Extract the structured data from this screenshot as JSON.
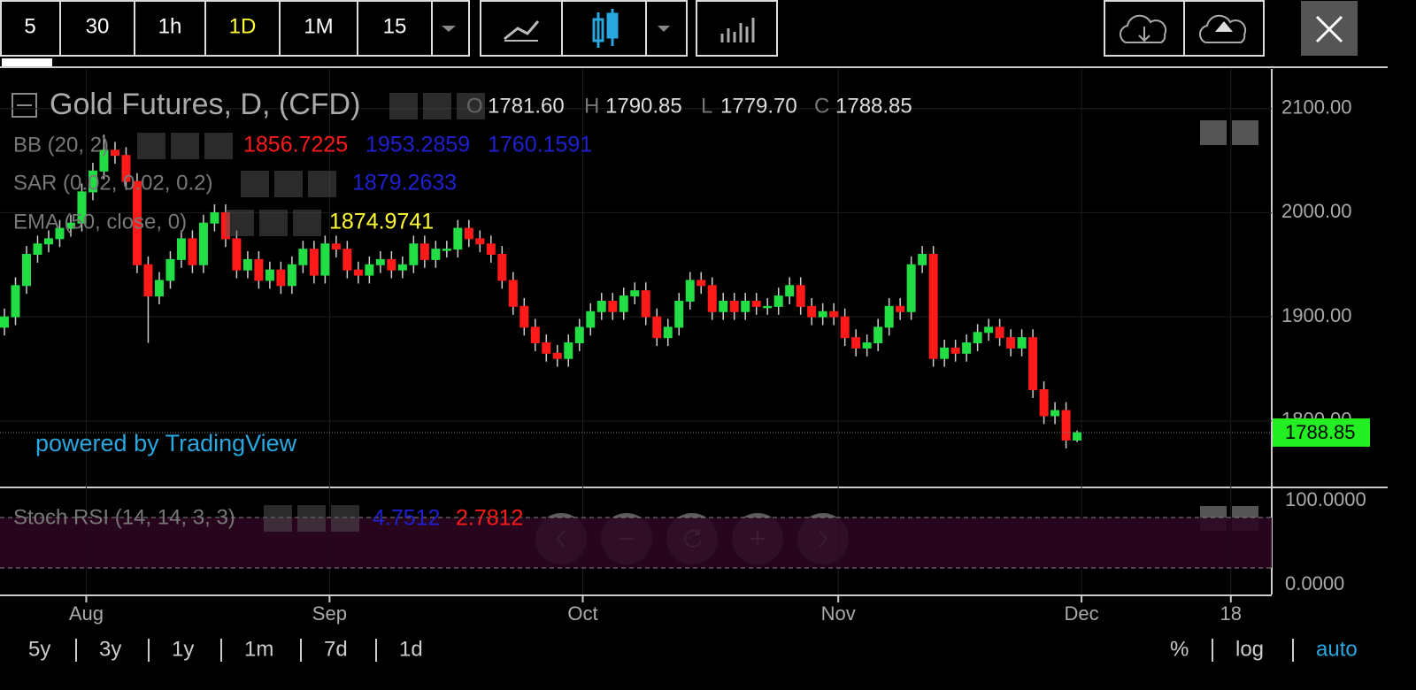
{
  "toolbar": {
    "intervals": [
      "5",
      "30",
      "1h",
      "1D",
      "1M",
      "15"
    ],
    "active_interval": "1D"
  },
  "legend": {
    "title": "Gold Futures, D, (CFD)",
    "ohlc": [
      {
        "key": "O",
        "value": "1781.60"
      },
      {
        "key": "H",
        "value": "1790.85"
      },
      {
        "key": "L",
        "value": "1779.70"
      },
      {
        "key": "C",
        "value": "1788.85"
      }
    ],
    "indicators": [
      {
        "name": "BB (20, 2)",
        "values": [
          "1856.7225",
          "1953.2859",
          "1760.1591"
        ],
        "colors": [
          "#ff1a1a",
          "#2020d0",
          "#2020d0"
        ]
      },
      {
        "name": "SAR (0.02, 0.02, 0.2)",
        "values": [
          "1879.2633"
        ],
        "colors": [
          "#2020d0"
        ]
      },
      {
        "name": "EMA (50, close, 0)",
        "values": [
          "1874.9741"
        ],
        "colors": [
          "#ffff33"
        ]
      }
    ]
  },
  "watermark": "powered by TradingView",
  "chart_data": {
    "type": "candlestick",
    "up_color": "#22dd44",
    "down_color": "#ff1a1a",
    "open": [
      1890,
      1900,
      1930,
      1960,
      1970,
      1975,
      1985,
      1990,
      2020,
      2040,
      2060,
      2055,
      2030,
      1950,
      1920,
      1935,
      1955,
      1975,
      1950,
      1990,
      2000,
      1975,
      1945,
      1955,
      1935,
      1945,
      1930,
      1950,
      1965,
      1940,
      1970,
      1965,
      1945,
      1940,
      1950,
      1955,
      1945,
      1950,
      1970,
      1955,
      1965,
      1965,
      1985,
      1975,
      1970,
      1960,
      1935,
      1910,
      1890,
      1875,
      1865,
      1860,
      1875,
      1890,
      1905,
      1915,
      1905,
      1920,
      1925,
      1900,
      1880,
      1890,
      1915,
      1935,
      1930,
      1905,
      1915,
      1905,
      1915,
      1910,
      1910,
      1920,
      1930,
      1910,
      1900,
      1905,
      1900,
      1880,
      1870,
      1875,
      1890,
      1910,
      1905,
      1950,
      1960,
      1860,
      1870,
      1865,
      1875,
      1885,
      1890,
      1880,
      1870,
      1880,
      1830,
      1805,
      1810,
      1781.6
    ],
    "high": [
      1908,
      1938,
      1968,
      1978,
      1983,
      1993,
      1998,
      2028,
      2048,
      2075,
      2068,
      2063,
      2038,
      1958,
      1943,
      1963,
      1983,
      1983,
      1998,
      2008,
      2008,
      1983,
      1963,
      1963,
      1953,
      1953,
      1958,
      1973,
      1973,
      1978,
      1978,
      1973,
      1953,
      1958,
      1963,
      1963,
      1958,
      1978,
      1978,
      1973,
      1973,
      1993,
      1993,
      1983,
      1978,
      1968,
      1943,
      1918,
      1898,
      1883,
      1873,
      1883,
      1898,
      1913,
      1923,
      1923,
      1928,
      1933,
      1933,
      1908,
      1898,
      1923,
      1943,
      1943,
      1938,
      1923,
      1923,
      1923,
      1923,
      1918,
      1928,
      1938,
      1938,
      1918,
      1913,
      1913,
      1908,
      1888,
      1883,
      1898,
      1918,
      1918,
      1958,
      1968,
      1968,
      1878,
      1878,
      1883,
      1893,
      1898,
      1898,
      1888,
      1888,
      1888,
      1838,
      1818,
      1818,
      1790.85
    ],
    "low": [
      1882,
      1892,
      1922,
      1952,
      1962,
      1967,
      1977,
      1982,
      2012,
      2032,
      2047,
      2022,
      1942,
      1875,
      1912,
      1927,
      1947,
      1942,
      1942,
      1982,
      1967,
      1937,
      1937,
      1927,
      1927,
      1922,
      1922,
      1942,
      1932,
      1932,
      1957,
      1937,
      1932,
      1932,
      1942,
      1937,
      1937,
      1942,
      1947,
      1947,
      1957,
      1957,
      1967,
      1962,
      1952,
      1927,
      1902,
      1882,
      1867,
      1857,
      1852,
      1852,
      1867,
      1882,
      1897,
      1897,
      1897,
      1912,
      1892,
      1872,
      1872,
      1882,
      1907,
      1922,
      1897,
      1897,
      1897,
      1897,
      1902,
      1902,
      1902,
      1912,
      1902,
      1892,
      1892,
      1892,
      1872,
      1862,
      1862,
      1867,
      1882,
      1897,
      1897,
      1942,
      1852,
      1852,
      1857,
      1857,
      1867,
      1877,
      1872,
      1862,
      1862,
      1822,
      1797,
      1797,
      1773.6,
      1779.7
    ],
    "close": [
      1900,
      1930,
      1960,
      1970,
      1975,
      1985,
      1990,
      2020,
      2040,
      2060,
      2055,
      2030,
      1950,
      1920,
      1935,
      1955,
      1975,
      1950,
      1990,
      2000,
      1975,
      1945,
      1955,
      1935,
      1945,
      1930,
      1950,
      1965,
      1940,
      1970,
      1965,
      1945,
      1940,
      1950,
      1955,
      1945,
      1950,
      1970,
      1955,
      1965,
      1965,
      1985,
      1975,
      1970,
      1960,
      1935,
      1910,
      1890,
      1875,
      1865,
      1860,
      1875,
      1890,
      1905,
      1915,
      1905,
      1920,
      1925,
      1900,
      1880,
      1890,
      1915,
      1935,
      1930,
      1905,
      1915,
      1905,
      1915,
      1910,
      1910,
      1920,
      1930,
      1910,
      1900,
      1905,
      1900,
      1880,
      1870,
      1875,
      1890,
      1910,
      1905,
      1950,
      1960,
      1860,
      1870,
      1865,
      1875,
      1885,
      1890,
      1880,
      1870,
      1880,
      1830,
      1805,
      1810,
      1781.6,
      1788.85
    ],
    "ylim": [
      1737,
      2138
    ],
    "yticks": [
      {
        "value": 2100,
        "label": "2100.00"
      },
      {
        "value": 2000,
        "label": "2000.00"
      },
      {
        "value": 1900,
        "label": "1900.00"
      },
      {
        "value": 1800,
        "label": "1800.00"
      }
    ],
    "xlim": [
      -0.4,
      114.6
    ],
    "xticks": [
      {
        "value": 7.4,
        "label": "Aug"
      },
      {
        "value": 29.4,
        "label": "Sep"
      },
      {
        "value": 52.3,
        "label": "Oct"
      },
      {
        "value": 75.4,
        "label": "Nov"
      },
      {
        "value": 97.4,
        "label": "Dec"
      },
      {
        "value": 110.9,
        "label": "18"
      }
    ],
    "last_price": {
      "value": 1788.85,
      "label": "1788.85"
    },
    "grid": true
  },
  "stoch_rsi": {
    "name": "Stoch RSI (14, 14, 3, 3)",
    "values": [
      "4.7512",
      "2.7812"
    ],
    "colors": [
      "#2020d0",
      "#ff1a1a"
    ],
    "ylim": [
      0,
      100
    ],
    "yticks": [
      {
        "value": 100,
        "label": "100.0000"
      },
      {
        "value": 0,
        "label": "0.0000"
      }
    ],
    "levels": [
      20,
      80
    ]
  },
  "ranges": [
    "5y",
    "3y",
    "1y",
    "1m",
    "7d",
    "1d"
  ],
  "scale_options": [
    "%",
    "log",
    "auto"
  ],
  "active_scale": "auto"
}
